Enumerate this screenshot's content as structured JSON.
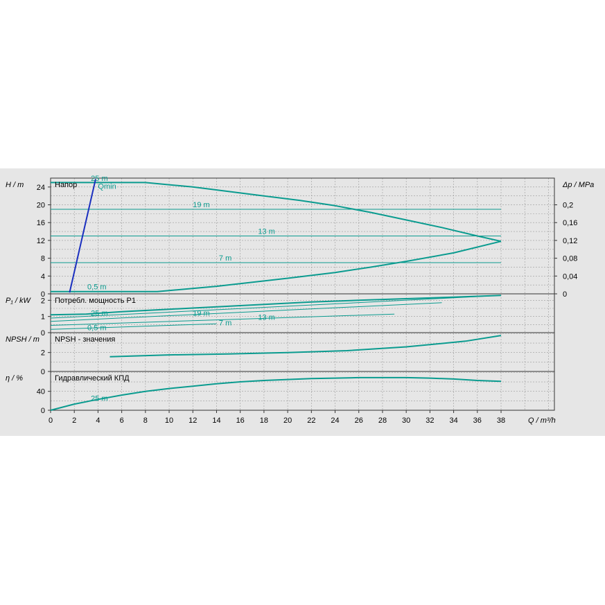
{
  "colors": {
    "curve": "#0a9b8f",
    "qmin_line": "#1a2fbf",
    "grid": "#9a9a9a",
    "background": "#e6e6e6"
  },
  "chart_data": [
    {
      "type": "line",
      "panel_title": "Напор",
      "ylabel": "H / m",
      "ylabel_right": "Δp / MPa",
      "ylim": [
        0,
        26
      ],
      "yticks": [
        0,
        4,
        8,
        12,
        16,
        20,
        24
      ],
      "yticks_right": [
        "0",
        "0,04",
        "0,08",
        "0,12",
        "0,16",
        "0,2"
      ],
      "xlim": [
        0,
        42.5
      ],
      "x_axis": {
        "label": "Q / m³/h",
        "ticks": [
          0,
          2,
          4,
          6,
          8,
          10,
          12,
          14,
          16,
          18,
          20,
          22,
          24,
          26,
          28,
          30,
          32,
          34,
          36,
          38
        ]
      },
      "series": [
        {
          "name": "25 m",
          "x": [
            0,
            6,
            8,
            10,
            12,
            15,
            18,
            21,
            24,
            27,
            30,
            33,
            36,
            38
          ],
          "y": [
            25,
            25,
            25,
            24.5,
            24,
            23,
            22,
            21,
            19.8,
            18.3,
            16.6,
            14.9,
            13,
            11.8
          ]
        },
        {
          "name": "19 m",
          "x": [
            0,
            38
          ],
          "y": [
            19,
            19
          ]
        },
        {
          "name": "13 m",
          "x": [
            0,
            38
          ],
          "y": [
            13,
            13
          ]
        },
        {
          "name": "7 m",
          "x": [
            0,
            38
          ],
          "y": [
            7,
            7
          ]
        },
        {
          "name": "0,5 m",
          "x": [
            0,
            9,
            14,
            20,
            24,
            27,
            30,
            34,
            38
          ],
          "y": [
            0.5,
            0.5,
            1.7,
            3.5,
            4.8,
            6,
            7.3,
            9.2,
            11.8
          ]
        },
        {
          "name": "Qmin",
          "x": [
            1.6,
            3.8
          ],
          "y": [
            0.3,
            25.8
          ]
        }
      ]
    },
    {
      "type": "line",
      "panel_title": "Потребл. мощность P1",
      "ylabel": "P₁ / kW",
      "ylim": [
        0,
        2.4
      ],
      "yticks": [
        0,
        1,
        2
      ],
      "series": [
        {
          "name": "25 m",
          "x": [
            0,
            3,
            6,
            10,
            14,
            18,
            22,
            26,
            30,
            34,
            38
          ],
          "y": [
            1.1,
            1.15,
            1.3,
            1.45,
            1.6,
            1.75,
            1.9,
            2.0,
            2.1,
            2.2,
            2.3
          ]
        },
        {
          "name": "19 m",
          "x": [
            0,
            38
          ],
          "y": [
            0.9,
            2.3
          ]
        },
        {
          "name": "13 m",
          "x": [
            0,
            33
          ],
          "y": [
            0.7,
            1.85
          ]
        },
        {
          "name": "7 m",
          "x": [
            0,
            29
          ],
          "y": [
            0.45,
            1.15
          ]
        },
        {
          "name": "0,5 m",
          "x": [
            0,
            14
          ],
          "y": [
            0.2,
            0.55
          ]
        }
      ]
    },
    {
      "type": "line",
      "panel_title": "NPSH - значения",
      "ylabel": "NPSH / m",
      "ylim": [
        0,
        4.1
      ],
      "yticks": [
        0,
        2
      ],
      "series": [
        {
          "name": "NPSH",
          "x": [
            5,
            10,
            15,
            20,
            25,
            30,
            35,
            38
          ],
          "y": [
            1.55,
            1.75,
            1.85,
            2.0,
            2.2,
            2.6,
            3.2,
            3.8
          ]
        }
      ]
    },
    {
      "type": "line",
      "panel_title": "Гидравлический КПД",
      "ylabel": "η / %",
      "ylim": [
        0,
        82
      ],
      "yticks": [
        0,
        40
      ],
      "series": [
        {
          "name": "25 m",
          "x": [
            0,
            2,
            4,
            6,
            8,
            10,
            12,
            14,
            16,
            18,
            20,
            22,
            24,
            26,
            28,
            30,
            32,
            34,
            36,
            38
          ],
          "y": [
            0,
            13,
            23,
            32,
            40,
            46,
            51,
            56,
            60,
            63,
            65,
            67,
            68,
            69,
            69,
            69,
            68,
            66,
            63,
            61
          ]
        }
      ]
    }
  ]
}
